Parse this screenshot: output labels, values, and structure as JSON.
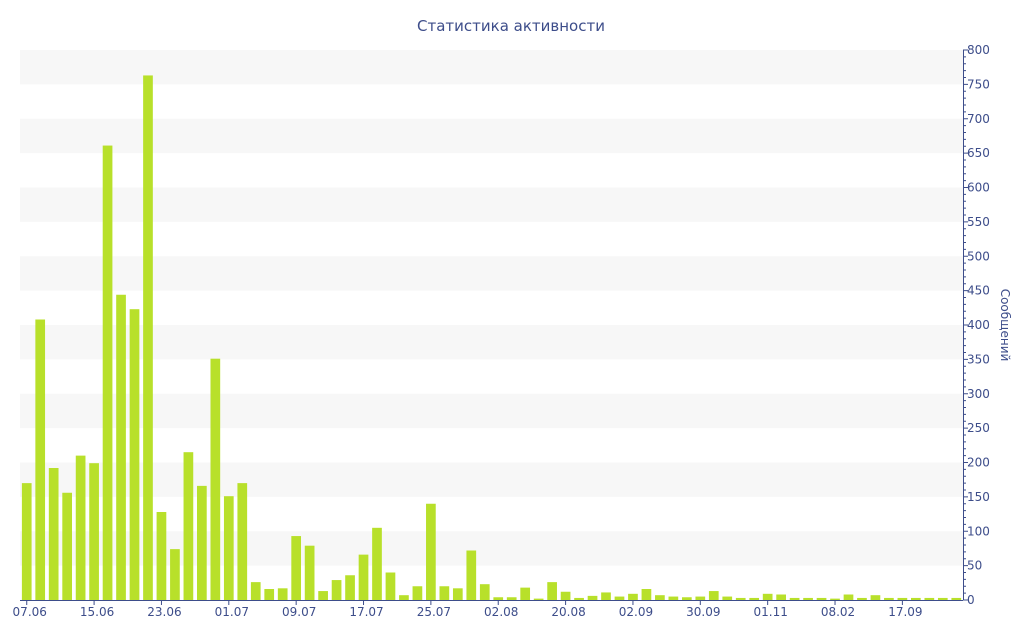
{
  "chart_data": {
    "type": "bar",
    "title": "Статистика активности",
    "xlabel": "",
    "ylabel": "Сообщений",
    "ylim": [
      0,
      800
    ],
    "y_ticks": [
      0,
      50,
      100,
      150,
      200,
      250,
      300,
      350,
      400,
      450,
      500,
      550,
      600,
      650,
      700,
      750,
      800
    ],
    "y_axis_side": "right",
    "x_tick_labels": [
      {
        "index": 0,
        "label": "07.06"
      },
      {
        "index": 5,
        "label": "15.06"
      },
      {
        "index": 10,
        "label": "23.06"
      },
      {
        "index": 15,
        "label": "01.07"
      },
      {
        "index": 20,
        "label": "09.07"
      },
      {
        "index": 25,
        "label": "17.07"
      },
      {
        "index": 30,
        "label": "25.07"
      },
      {
        "index": 35,
        "label": "02.08"
      },
      {
        "index": 40,
        "label": "20.08"
      },
      {
        "index": 45,
        "label": "02.09"
      },
      {
        "index": 50,
        "label": "30.09"
      },
      {
        "index": 55,
        "label": "01.11"
      },
      {
        "index": 60,
        "label": "08.02"
      },
      {
        "index": 65,
        "label": "17.09"
      }
    ],
    "values": [
      170,
      408,
      192,
      156,
      210,
      199,
      661,
      444,
      423,
      763,
      128,
      74,
      215,
      166,
      351,
      151,
      170,
      26,
      16,
      17,
      93,
      79,
      13,
      29,
      36,
      66,
      105,
      40,
      7,
      20,
      140,
      20,
      17,
      72,
      23,
      4,
      4,
      18,
      2,
      26,
      12,
      3,
      6,
      11,
      5,
      9,
      16,
      7,
      5,
      4,
      5,
      13,
      5,
      3,
      3,
      9,
      8,
      3,
      3,
      3,
      2,
      8,
      3,
      7,
      3,
      3,
      3,
      3,
      3,
      3
    ],
    "grid": true,
    "legend": "none",
    "colors": {
      "bar": "#b8e02a",
      "band": "#f7f7f7",
      "text": "#3d4d8a",
      "axis": "#3d4d8a"
    }
  }
}
